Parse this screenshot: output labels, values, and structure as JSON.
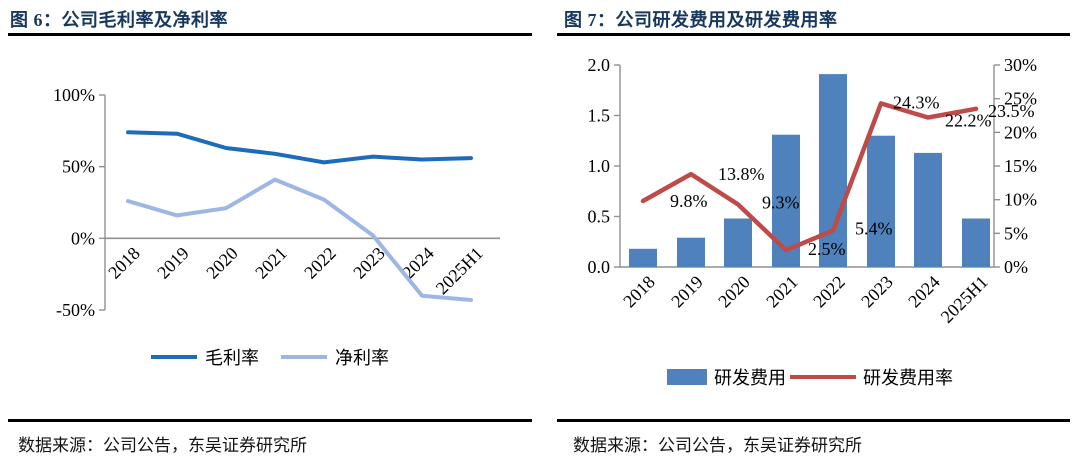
{
  "panels": [
    {
      "title": "图 6：公司毛利率及净利率",
      "source": "数据来源：公司公告，东吴证券研究所"
    },
    {
      "title": "图 7：公司研发费用及研发费用率",
      "source": "数据来源：公司公告，东吴证券研究所"
    }
  ],
  "colors": {
    "title_navy": "#17375D",
    "gross_margin_blue": "#1E6BBA",
    "net_margin_light_blue": "#9DB6E4",
    "bar_blue": "#4F81BD",
    "rate_red": "#BE4B48",
    "axis_gray": "#909090",
    "rule_black": "#000000"
  },
  "chart_data": [
    {
      "type": "line",
      "title": "公司毛利率及净利率",
      "categories": [
        "2018",
        "2019",
        "2020",
        "2021",
        "2022",
        "2023",
        "2024",
        "2025H1"
      ],
      "series": [
        {
          "name": "毛利率",
          "color": "#1E6BBA",
          "values": [
            74,
            73,
            63,
            59,
            53,
            57,
            55,
            56
          ]
        },
        {
          "name": "净利率",
          "color": "#9DB6E4",
          "values": [
            26,
            16,
            21,
            41,
            27,
            2,
            -40,
            -43
          ]
        }
      ],
      "ylim": [
        -50,
        100
      ],
      "yticks": [
        {
          "value": 100,
          "label": "100%"
        },
        {
          "value": 50,
          "label": "50%"
        },
        {
          "value": 0,
          "label": "0%"
        },
        {
          "value": -50,
          "label": "-50%"
        }
      ],
      "grid": false,
      "legend_position": "bottom"
    },
    {
      "type": "bar+line",
      "title": "公司研发费用及研发费用率",
      "categories": [
        "2018",
        "2019",
        "2020",
        "2021",
        "2022",
        "2023",
        "2024",
        "2025H1"
      ],
      "bar_series": {
        "name": "研发费用",
        "color": "#4F81BD",
        "axis": "left",
        "values": [
          0.18,
          0.29,
          0.48,
          1.31,
          1.91,
          1.3,
          1.13,
          0.48
        ]
      },
      "line_series": {
        "name": "研发费用率",
        "color": "#BE4B48",
        "axis": "right",
        "values": [
          9.8,
          13.8,
          9.3,
          2.5,
          5.4,
          24.3,
          22.2,
          23.5
        ],
        "labels": [
          "9.8%",
          "13.8%",
          "9.3%",
          "2.5%",
          "5.4%",
          "24.3%",
          "22.2%",
          "23.5%"
        ]
      },
      "ylim_left": [
        0,
        2.0
      ],
      "ylim_right": [
        0,
        30
      ],
      "yticks_left": [
        {
          "value": 2.0,
          "label": "2.0"
        },
        {
          "value": 1.5,
          "label": "1.5"
        },
        {
          "value": 1.0,
          "label": "1.0"
        },
        {
          "value": 0.5,
          "label": "0.5"
        },
        {
          "value": 0.0,
          "label": "0.0"
        }
      ],
      "yticks_right": [
        {
          "value": 30,
          "label": "30%"
        },
        {
          "value": 25,
          "label": "25%"
        },
        {
          "value": 20,
          "label": "20%"
        },
        {
          "value": 15,
          "label": "15%"
        },
        {
          "value": 10,
          "label": "10%"
        },
        {
          "value": 5,
          "label": "5%"
        },
        {
          "value": 0,
          "label": "0%"
        }
      ],
      "grid": false,
      "legend_position": "bottom"
    }
  ]
}
